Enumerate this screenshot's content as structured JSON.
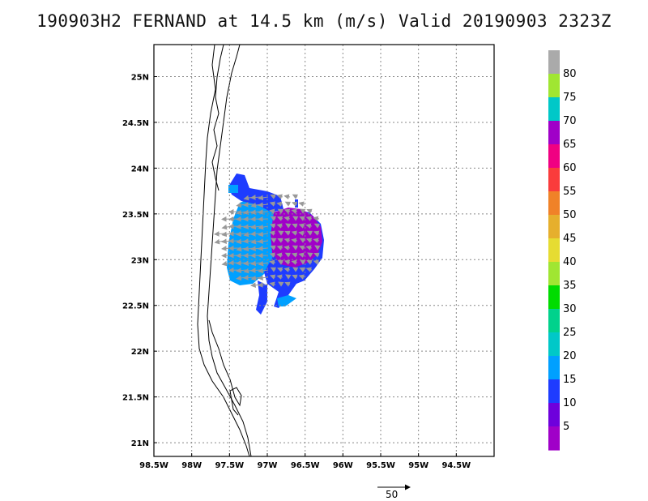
{
  "title": "190903H2 FERNAND at 14.5 km (m/s) Valid 20190903 2323Z",
  "map": {
    "lon_range": [
      -98.5,
      -94.0
    ],
    "lat_range": [
      20.85,
      25.35
    ],
    "x_tick_labels": [
      {
        "lon": -98.5,
        "label": "98.5W"
      },
      {
        "lon": -98.0,
        "label": "98W"
      },
      {
        "lon": -97.5,
        "label": "97.5W"
      },
      {
        "lon": -97.0,
        "label": "97W"
      },
      {
        "lon": -96.5,
        "label": "96.5W"
      },
      {
        "lon": -96.0,
        "label": "96W"
      },
      {
        "lon": -95.5,
        "label": "95.5W"
      },
      {
        "lon": -95.0,
        "label": "95W"
      },
      {
        "lon": -94.5,
        "label": "94.5W"
      }
    ],
    "y_tick_labels": [
      {
        "lat": 21.0,
        "label": "21N"
      },
      {
        "lat": 21.5,
        "label": "21.5N"
      },
      {
        "lat": 22.0,
        "label": "22N"
      },
      {
        "lat": 22.5,
        "label": "22.5N"
      },
      {
        "lat": 23.0,
        "label": "23N"
      },
      {
        "lat": 23.5,
        "label": "23.5N"
      },
      {
        "lat": 24.0,
        "label": "24N"
      },
      {
        "lat": 24.5,
        "label": "24.5N"
      },
      {
        "lat": 25.0,
        "label": "25N"
      }
    ],
    "grid": "dotted"
  },
  "colorbar": {
    "colors": [
      "#a000c8",
      "#6e00dc",
      "#1e3cff",
      "#00a0ff",
      "#00c8c8",
      "#00d28c",
      "#00dc00",
      "#a0e632",
      "#e6dc32",
      "#e6af2d",
      "#f08228",
      "#fa3c3c",
      "#f00082",
      "#a000c8",
      "#00c8c8",
      "#a0e632",
      "#aaaaaa"
    ],
    "labels": [
      "5",
      "10",
      "15",
      "20",
      "25",
      "30",
      "35",
      "40",
      "45",
      "50",
      "55",
      "60",
      "65",
      "70",
      "75",
      "80"
    ]
  },
  "vector_scale": {
    "label": "50"
  }
}
